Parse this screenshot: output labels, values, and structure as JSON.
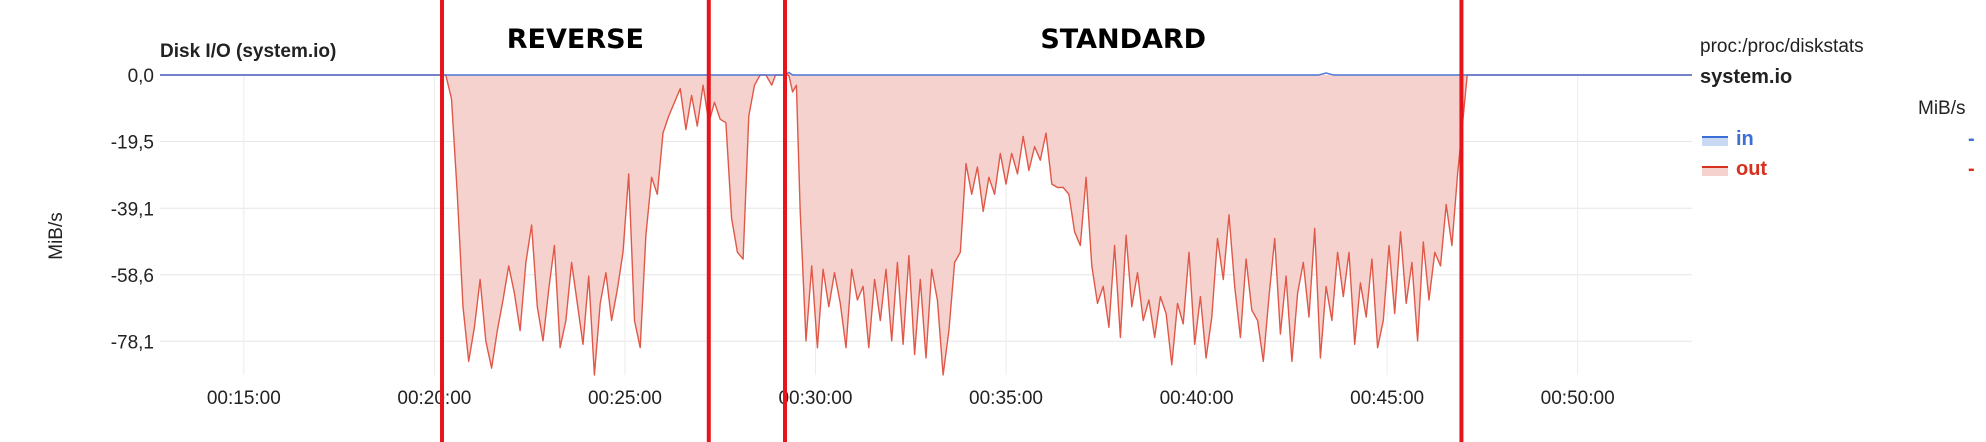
{
  "chart_data": {
    "type": "area",
    "title": "Disk I/O (system.io)",
    "ylabel": "MiB/s",
    "y_ticks": [
      "0,0",
      "-19,5",
      "-39,1",
      "-58,6",
      "-78,1"
    ],
    "y_tick_values": [
      0,
      -19.5,
      -39.1,
      -58.6,
      -78.1
    ],
    "ylim": [
      -88,
      0
    ],
    "x_ticks": [
      "00:15:00",
      "00:20:00",
      "00:25:00",
      "00:30:00",
      "00:35:00",
      "00:40:00",
      "00:45:00",
      "00:50:00"
    ],
    "x_tick_minutes": [
      15,
      20,
      25,
      30,
      35,
      40,
      45,
      50
    ],
    "xlim_minutes": [
      12.8,
      53.0
    ],
    "grid": true,
    "series": [
      {
        "name": "in",
        "color": "#4a74d6",
        "points": [
          [
            12.8,
            0
          ],
          [
            22.3,
            0
          ],
          [
            27.1,
            0
          ],
          [
            29.2,
            0
          ],
          [
            29.3,
            0.8
          ],
          [
            29.4,
            0
          ],
          [
            41.0,
            0
          ],
          [
            43.2,
            0
          ],
          [
            43.4,
            0.6
          ],
          [
            43.6,
            0
          ],
          [
            47.0,
            0
          ],
          [
            53.0,
            0
          ]
        ]
      },
      {
        "name": "out",
        "color": "#e05848",
        "fill": "#f6d2ce",
        "points": [
          [
            12.8,
            0
          ],
          [
            20.3,
            0
          ],
          [
            20.45,
            -7
          ],
          [
            20.6,
            -35
          ],
          [
            20.75,
            -68
          ],
          [
            20.9,
            -84
          ],
          [
            21.05,
            -74
          ],
          [
            21.2,
            -60
          ],
          [
            21.35,
            -78
          ],
          [
            21.5,
            -86
          ],
          [
            21.65,
            -75
          ],
          [
            21.8,
            -66
          ],
          [
            21.95,
            -56
          ],
          [
            22.1,
            -64
          ],
          [
            22.25,
            -75
          ],
          [
            22.4,
            -55
          ],
          [
            22.55,
            -44
          ],
          [
            22.7,
            -68
          ],
          [
            22.85,
            -78
          ],
          [
            23.0,
            -63
          ],
          [
            23.15,
            -50
          ],
          [
            23.3,
            -80
          ],
          [
            23.45,
            -72
          ],
          [
            23.6,
            -55
          ],
          [
            23.75,
            -67
          ],
          [
            23.9,
            -79
          ],
          [
            24.05,
            -59
          ],
          [
            24.2,
            -88
          ],
          [
            24.35,
            -67
          ],
          [
            24.5,
            -58
          ],
          [
            24.65,
            -72
          ],
          [
            24.8,
            -63
          ],
          [
            24.95,
            -52
          ],
          [
            25.1,
            -29
          ],
          [
            25.25,
            -72
          ],
          [
            25.4,
            -80
          ],
          [
            25.55,
            -47
          ],
          [
            25.7,
            -30
          ],
          [
            25.85,
            -35
          ],
          [
            26.0,
            -17
          ],
          [
            26.15,
            -12
          ],
          [
            26.3,
            -8
          ],
          [
            26.45,
            -4
          ],
          [
            26.6,
            -16
          ],
          [
            26.75,
            -6
          ],
          [
            26.9,
            -15
          ],
          [
            27.05,
            -3
          ],
          [
            27.2,
            -14
          ],
          [
            27.35,
            -8
          ],
          [
            27.5,
            -13
          ],
          [
            27.65,
            -14
          ],
          [
            27.8,
            -42
          ],
          [
            27.95,
            -52
          ],
          [
            28.1,
            -54
          ],
          [
            28.25,
            -12
          ],
          [
            28.4,
            -3
          ],
          [
            28.55,
            0
          ],
          [
            28.7,
            0
          ],
          [
            28.85,
            -3
          ],
          [
            28.95,
            0
          ],
          [
            29.0,
            0
          ],
          [
            29.3,
            0
          ],
          [
            29.4,
            -5
          ],
          [
            29.5,
            -3
          ],
          [
            29.6,
            -40
          ],
          [
            29.75,
            -78
          ],
          [
            29.9,
            -56
          ],
          [
            30.05,
            -80
          ],
          [
            30.2,
            -57
          ],
          [
            30.35,
            -68
          ],
          [
            30.5,
            -58
          ],
          [
            30.65,
            -67
          ],
          [
            30.8,
            -80
          ],
          [
            30.95,
            -57
          ],
          [
            31.1,
            -66
          ],
          [
            31.25,
            -62
          ],
          [
            31.4,
            -80
          ],
          [
            31.55,
            -60
          ],
          [
            31.7,
            -72
          ],
          [
            31.85,
            -57
          ],
          [
            32.0,
            -78
          ],
          [
            32.15,
            -55
          ],
          [
            32.3,
            -79
          ],
          [
            32.45,
            -53
          ],
          [
            32.6,
            -82
          ],
          [
            32.75,
            -60
          ],
          [
            32.9,
            -83
          ],
          [
            33.05,
            -57
          ],
          [
            33.2,
            -66
          ],
          [
            33.35,
            -88
          ],
          [
            33.5,
            -75
          ],
          [
            33.65,
            -55
          ],
          [
            33.8,
            -52
          ],
          [
            33.95,
            -26
          ],
          [
            34.1,
            -35
          ],
          [
            34.25,
            -27
          ],
          [
            34.4,
            -40
          ],
          [
            34.55,
            -30
          ],
          [
            34.7,
            -35
          ],
          [
            34.85,
            -23
          ],
          [
            35.0,
            -32
          ],
          [
            35.15,
            -23
          ],
          [
            35.3,
            -29
          ],
          [
            35.45,
            -18
          ],
          [
            35.6,
            -28
          ],
          [
            35.75,
            -21
          ],
          [
            35.9,
            -25
          ],
          [
            36.05,
            -17
          ],
          [
            36.2,
            -32
          ],
          [
            36.35,
            -33
          ],
          [
            36.5,
            -33
          ],
          [
            36.65,
            -35
          ],
          [
            36.8,
            -46
          ],
          [
            36.95,
            -50
          ],
          [
            37.1,
            -30
          ],
          [
            37.25,
            -56
          ],
          [
            37.4,
            -67
          ],
          [
            37.55,
            -62
          ],
          [
            37.7,
            -74
          ],
          [
            37.85,
            -50
          ],
          [
            38.0,
            -77
          ],
          [
            38.15,
            -47
          ],
          [
            38.3,
            -68
          ],
          [
            38.45,
            -58
          ],
          [
            38.6,
            -72
          ],
          [
            38.75,
            -66
          ],
          [
            38.9,
            -77
          ],
          [
            39.05,
            -65
          ],
          [
            39.2,
            -70
          ],
          [
            39.35,
            -85
          ],
          [
            39.5,
            -67
          ],
          [
            39.65,
            -73
          ],
          [
            39.8,
            -52
          ],
          [
            39.95,
            -79
          ],
          [
            40.1,
            -65
          ],
          [
            40.25,
            -83
          ],
          [
            40.4,
            -71
          ],
          [
            40.55,
            -48
          ],
          [
            40.7,
            -60
          ],
          [
            40.85,
            -41
          ],
          [
            41.0,
            -62
          ],
          [
            41.15,
            -77
          ],
          [
            41.3,
            -54
          ],
          [
            41.45,
            -69
          ],
          [
            41.6,
            -72
          ],
          [
            41.75,
            -84
          ],
          [
            41.9,
            -65
          ],
          [
            42.05,
            -48
          ],
          [
            42.2,
            -76
          ],
          [
            42.35,
            -59
          ],
          [
            42.5,
            -84
          ],
          [
            42.65,
            -64
          ],
          [
            42.8,
            -55
          ],
          [
            42.95,
            -71
          ],
          [
            43.1,
            -45
          ],
          [
            43.25,
            -83
          ],
          [
            43.4,
            -62
          ],
          [
            43.55,
            -72
          ],
          [
            43.7,
            -52
          ],
          [
            43.85,
            -65
          ],
          [
            44.0,
            -52
          ],
          [
            44.15,
            -79
          ],
          [
            44.3,
            -61
          ],
          [
            44.45,
            -71
          ],
          [
            44.6,
            -54
          ],
          [
            44.75,
            -80
          ],
          [
            44.9,
            -72
          ],
          [
            45.05,
            -50
          ],
          [
            45.2,
            -70
          ],
          [
            45.35,
            -46
          ],
          [
            45.5,
            -67
          ],
          [
            45.65,
            -55
          ],
          [
            45.8,
            -78
          ],
          [
            45.95,
            -49
          ],
          [
            46.1,
            -66
          ],
          [
            46.25,
            -52
          ],
          [
            46.4,
            -56
          ],
          [
            46.55,
            -38
          ],
          [
            46.7,
            -50
          ],
          [
            46.85,
            -29
          ],
          [
            47.0,
            -12
          ],
          [
            47.1,
            0
          ],
          [
            53.0,
            0
          ]
        ]
      }
    ],
    "annotations": {
      "regions": [
        {
          "label": "REVERSE",
          "start": 20.2,
          "end": 27.2
        },
        {
          "label": "STANDARD",
          "start": 29.2,
          "end": 46.95
        }
      ],
      "line_color": "#e8141c"
    }
  },
  "legend": {
    "source": "proc:/proc/diskstats",
    "context": "system.io",
    "units": "MiB/s",
    "items": [
      {
        "label": "in",
        "value": "-",
        "color": "#3b6fd6",
        "fill": "#c9d9f3"
      },
      {
        "label": "out",
        "value": "-",
        "color": "#d8301e",
        "fill": "#f6d2ce"
      }
    ]
  }
}
